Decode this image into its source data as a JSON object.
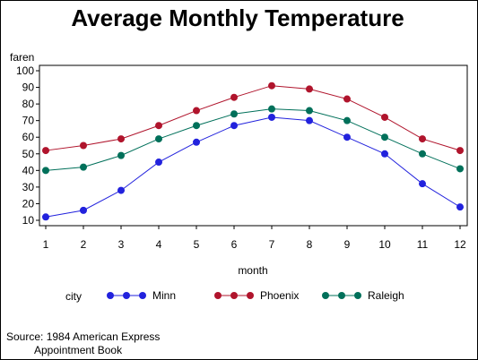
{
  "chart_data": {
    "type": "line",
    "title": "Average Monthly Temperature",
    "ylabel": "faren",
    "xlabel": "month",
    "x": [
      1,
      2,
      3,
      4,
      5,
      6,
      7,
      8,
      9,
      10,
      11,
      12
    ],
    "xticks": [
      "1",
      "2",
      "3",
      "4",
      "5",
      "6",
      "7",
      "8",
      "9",
      "10",
      "11",
      "12"
    ],
    "yticks": [
      "10",
      "20",
      "30",
      "40",
      "50",
      "60",
      "70",
      "80",
      "90",
      "100"
    ],
    "ylim": [
      10,
      100
    ],
    "xlim": [
      1,
      12
    ],
    "grid": false,
    "legend": {
      "title": "city",
      "position": "bottom"
    },
    "series": [
      {
        "name": "Minn",
        "color": "#2222dd",
        "marker": "dot",
        "values": [
          12,
          16,
          28,
          45,
          57,
          67,
          72,
          70,
          60,
          50,
          32,
          18
        ]
      },
      {
        "name": "Phoenix",
        "color": "#b0142c",
        "marker": "dot",
        "values": [
          52,
          55,
          59,
          67,
          76,
          84,
          91,
          89,
          83,
          72,
          59,
          52
        ]
      },
      {
        "name": "Raleigh",
        "color": "#00705a",
        "marker": "dot",
        "values": [
          40,
          42,
          49,
          59,
          67,
          74,
          77,
          76,
          70,
          60,
          50,
          41
        ]
      }
    ],
    "footnote": [
      "Source: 1984 American Express",
      "Appointment Book"
    ]
  }
}
